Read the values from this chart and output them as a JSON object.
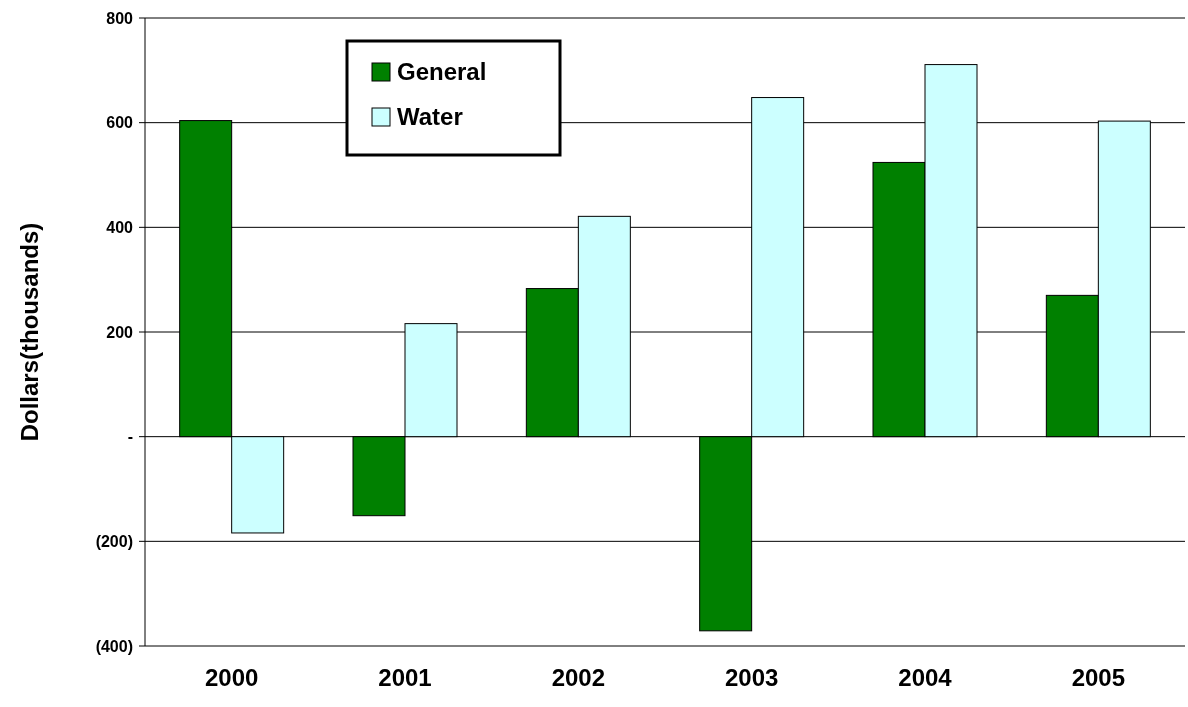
{
  "chart_data": {
    "type": "bar",
    "ylabel": "Dollars(thousands)",
    "categories": [
      "2000",
      "2001",
      "2002",
      "2003",
      "2004",
      "2005"
    ],
    "series": [
      {
        "name": "General",
        "color": "#008000",
        "values": [
          604,
          -151,
          283,
          -371,
          524,
          270
        ]
      },
      {
        "name": "Water",
        "color": "#ccffff",
        "values": [
          -184,
          216,
          421,
          648,
          711,
          603
        ]
      }
    ],
    "ylim": [
      -400,
      800
    ],
    "yticks": [
      {
        "value": 800,
        "label": "800"
      },
      {
        "value": 600,
        "label": "600"
      },
      {
        "value": 400,
        "label": "400"
      },
      {
        "value": 200,
        "label": "200"
      },
      {
        "value": 0,
        "label": "-"
      },
      {
        "value": -200,
        "label": "(200)"
      },
      {
        "value": -400,
        "label": "(400)"
      }
    ],
    "grid": "y",
    "legend": "top left"
  }
}
